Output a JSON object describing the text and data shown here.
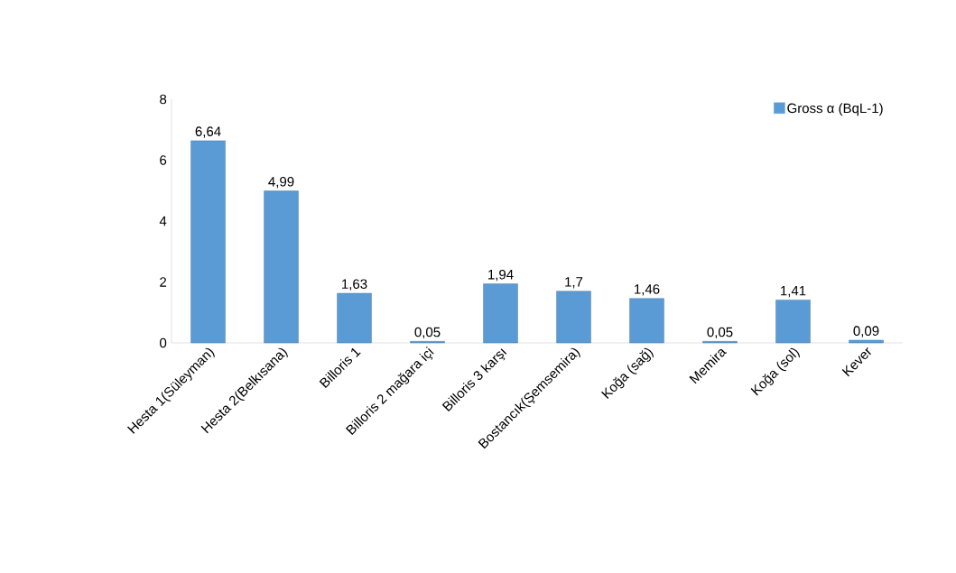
{
  "chart_data": {
    "type": "bar",
    "categories": [
      "Hesta 1(Süleyman)",
      "Hesta 2(Belkısana)",
      "Billoris 1",
      "Billoris 2 mağara içi",
      "Billoris 3 karşı",
      "Bostancık(Şemsemira)",
      "Koğa (sağ)",
      "Memira",
      "Koğa  (sol)",
      "Kever"
    ],
    "series": [
      {
        "name": "Gross α (BqL-1)",
        "color": "#5b9bd5",
        "values": [
          6.64,
          4.99,
          1.63,
          0.05,
          1.94,
          1.7,
          1.46,
          0.05,
          1.41,
          0.09
        ],
        "value_labels": [
          "6,64",
          "4,99",
          "1,63",
          "0,05",
          "1,94",
          "1,7",
          "1,46",
          "0,05",
          "1,41",
          "0,09"
        ]
      }
    ],
    "ylim": [
      0,
      8
    ],
    "yticks": [
      0,
      2,
      4,
      6,
      8
    ],
    "legend": "top right",
    "grid": false
  }
}
